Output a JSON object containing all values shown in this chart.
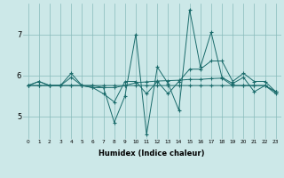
{
  "xlabel": "Humidex (Indice chaleur)",
  "background_color": "#cce8e8",
  "grid_color": "#88bbbb",
  "line_color": "#1a6b6b",
  "xlim": [
    -0.5,
    23.5
  ],
  "ylim": [
    4.45,
    7.75
  ],
  "yticks": [
    5,
    6,
    7
  ],
  "xticks": [
    0,
    1,
    2,
    3,
    4,
    5,
    6,
    7,
    8,
    9,
    10,
    11,
    12,
    13,
    14,
    15,
    16,
    17,
    18,
    19,
    20,
    21,
    22,
    23
  ],
  "series": [
    [
      5.75,
      5.85,
      5.75,
      5.75,
      6.05,
      5.75,
      5.7,
      5.7,
      4.85,
      5.5,
      7.0,
      4.55,
      6.2,
      5.8,
      5.15,
      7.6,
      6.2,
      7.05,
      5.95,
      5.8,
      5.95,
      5.6,
      5.75,
      5.55
    ],
    [
      5.75,
      5.85,
      5.75,
      5.75,
      5.95,
      5.75,
      5.7,
      5.55,
      5.35,
      5.85,
      5.85,
      5.55,
      5.85,
      5.55,
      5.85,
      6.15,
      6.15,
      6.35,
      6.35,
      5.85,
      6.05,
      5.85,
      5.85,
      5.6
    ],
    [
      5.75,
      5.75,
      5.75,
      5.75,
      5.75,
      5.75,
      5.75,
      5.7,
      5.7,
      5.75,
      5.82,
      5.84,
      5.86,
      5.87,
      5.88,
      5.9,
      5.9,
      5.92,
      5.93,
      5.75,
      5.75,
      5.75,
      5.75,
      5.6
    ],
    [
      5.75,
      5.75,
      5.75,
      5.75,
      5.75,
      5.75,
      5.75,
      5.75,
      5.75,
      5.75,
      5.75,
      5.75,
      5.75,
      5.75,
      5.75,
      5.75,
      5.75,
      5.75,
      5.75,
      5.75,
      5.75,
      5.75,
      5.75,
      5.6
    ]
  ]
}
